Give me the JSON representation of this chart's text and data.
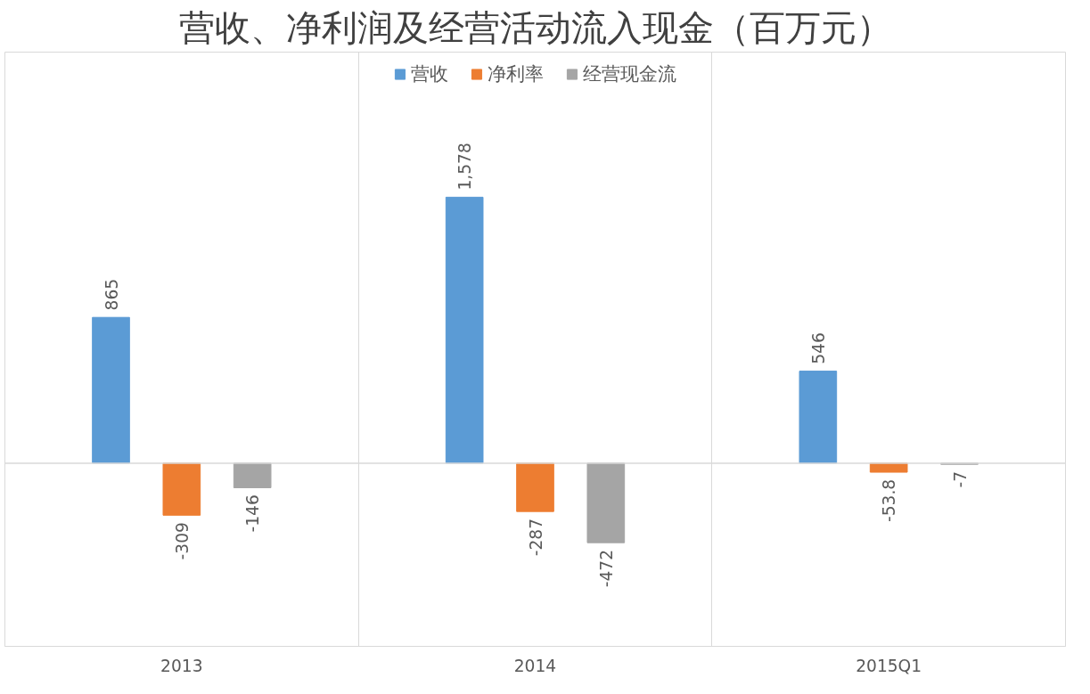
{
  "chart_data": {
    "type": "bar",
    "title": "营收、净利润及经营活动流入现金（百万元）",
    "categories": [
      "2013",
      "2014",
      "2015Q1"
    ],
    "series": [
      {
        "name": "营收",
        "color": "#5b9bd5",
        "values": [
          865,
          1578,
          546
        ],
        "value_labels": [
          "865",
          "1,578",
          "546"
        ]
      },
      {
        "name": "净利率",
        "color": "#ed7d31",
        "values": [
          -309,
          -287,
          -53.8
        ],
        "value_labels": [
          "-309",
          "-287",
          "-53.8"
        ]
      },
      {
        "name": "经营现金流",
        "color": "#a5a5a5",
        "values": [
          -146,
          -472,
          -7
        ],
        "value_labels": [
          "-146",
          "-472",
          "-7"
        ]
      }
    ],
    "legend": "top",
    "grid": "x"
  }
}
